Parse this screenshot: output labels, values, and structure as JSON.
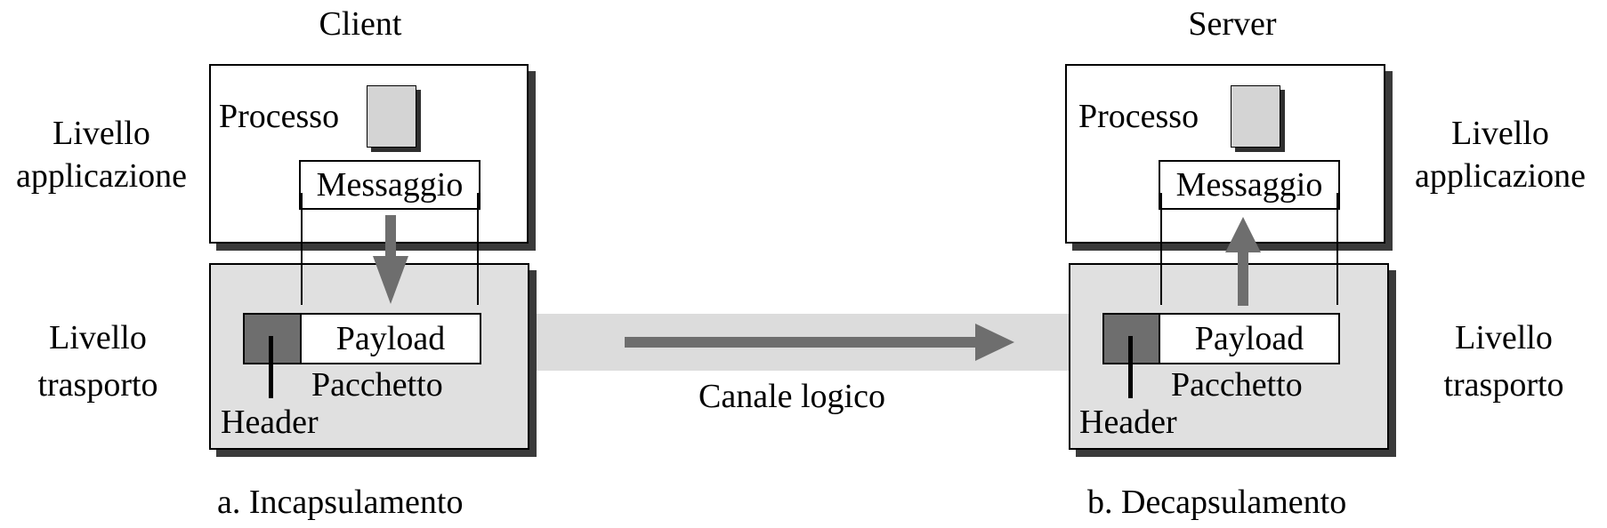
{
  "client": {
    "title": "Client",
    "app_layer_label_line1": "Livello",
    "app_layer_label_line2": "applicazione",
    "transport_layer_label_line1": "Livello",
    "transport_layer_label_line2": "trasporto",
    "process_label": "Processo",
    "message_label": "Messaggio",
    "payload_label": "Payload",
    "packet_label": "Pacchetto",
    "header_label": "Header",
    "caption": "a. Incapsulamento"
  },
  "server": {
    "title": "Server",
    "app_layer_label_line1": "Livello",
    "app_layer_label_line2": "applicazione",
    "transport_layer_label_line1": "Livello",
    "transport_layer_label_line2": "trasporto",
    "process_label": "Processo",
    "message_label": "Messaggio",
    "payload_label": "Payload",
    "packet_label": "Pacchetto",
    "header_label": "Header",
    "caption": "b. Decapsulamento"
  },
  "channel": {
    "label": "Canale logico"
  },
  "colors": {
    "arrow": "#6e6e6e",
    "header_fill": "#6e6e6e",
    "transport_fill": "#e0e0e0",
    "channel_fill": "#dcdcdc",
    "process_square_fill": "#d4d4d4"
  }
}
